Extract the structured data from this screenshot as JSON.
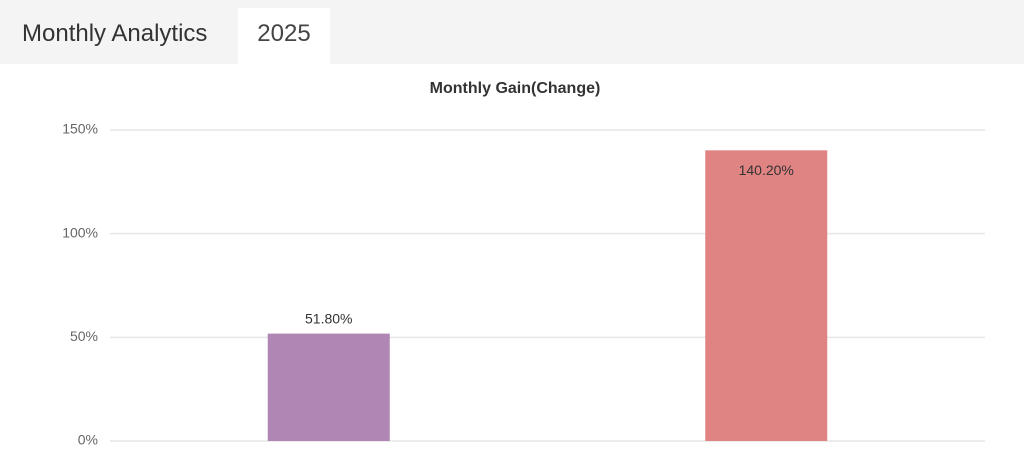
{
  "header": {
    "title": "Monthly Analytics",
    "tab": "2025"
  },
  "chart_data": {
    "type": "bar",
    "title": "Monthly Gain(Change)",
    "categories": [
      null,
      null
    ],
    "values": [
      51.8,
      140.2
    ],
    "value_labels": [
      "51.80%",
      "140.20%"
    ],
    "colors": [
      "#b086b5",
      "#e08383"
    ],
    "ylim": [
      0,
      150
    ],
    "yticks": [
      {
        "value": 0,
        "label": "0%"
      },
      {
        "value": 50,
        "label": "50%"
      },
      {
        "value": 100,
        "label": "100%"
      },
      {
        "value": 150,
        "label": "150%"
      }
    ],
    "grid": true
  }
}
